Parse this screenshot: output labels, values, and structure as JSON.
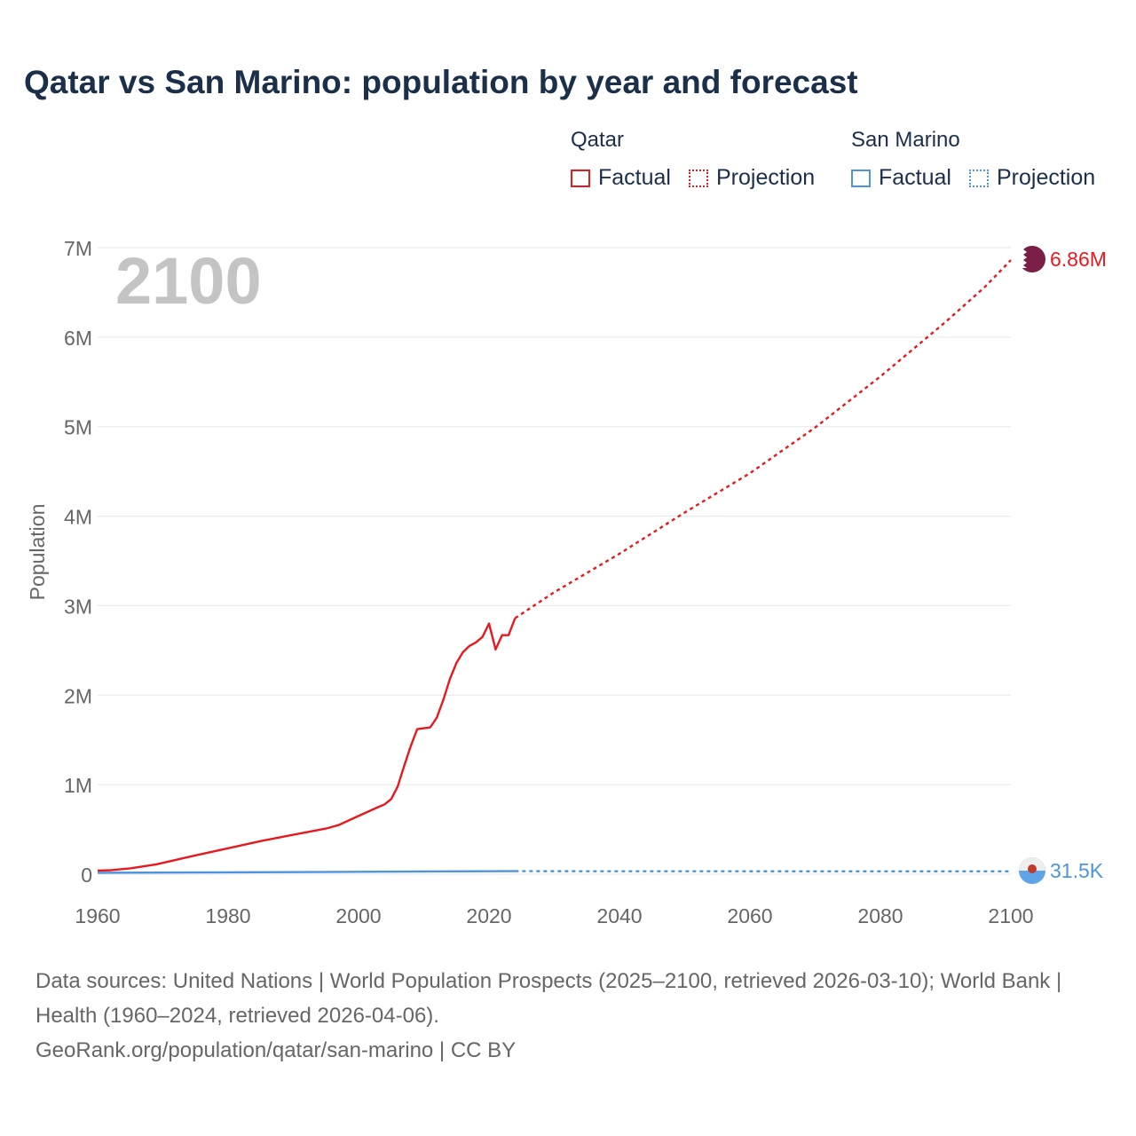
{
  "title": "Qatar vs San Marino: population by year and forecast",
  "legend": {
    "groups": [
      {
        "name": "Qatar",
        "factual_label": "Factual",
        "projection_label": "Projection",
        "color": "#e8191e"
      },
      {
        "name": "San Marino",
        "factual_label": "Factual",
        "projection_label": "Projection",
        "color": "#4d94e0"
      }
    ]
  },
  "year_watermark": "2100",
  "end_labels": {
    "qatar": "6.86M",
    "san_marino": "31.5K"
  },
  "source": {
    "line1": "Data sources: United Nations | World Population Prospects (2025–2100, retrieved 2026-03-10); World Bank | Health (1960–2024, retrieved 2026-04-06).",
    "line2": "GeoRank.org/population/qatar/san-marino | CC BY"
  },
  "chart_data": {
    "type": "line",
    "ylabel": "Population",
    "xlim": [
      1960,
      2100
    ],
    "ylim": [
      0,
      7000000
    ],
    "xticks": [
      1960,
      1980,
      2000,
      2020,
      2040,
      2060,
      2080,
      2100
    ],
    "xtick_labels": [
      "1960",
      "1980",
      "2000",
      "2020",
      "2040",
      "2060",
      "2080",
      "2100"
    ],
    "yticks": [
      0,
      1000000,
      2000000,
      3000000,
      4000000,
      5000000,
      6000000,
      7000000
    ],
    "ytick_labels": [
      "0",
      "1M",
      "2M",
      "3M",
      "4M",
      "5M",
      "6M",
      "7M"
    ],
    "series": [
      {
        "name": "Qatar",
        "kind": "Factual",
        "color": "#e8191e",
        "dashed": false,
        "x": [
          1960,
          1962,
          1965,
          1969,
          1975,
          1980,
          1985,
          1990,
          1995,
          1997,
          2000,
          2003,
          2004,
          2005,
          2006,
          2007,
          2008,
          2009,
          2010,
          2011,
          2012,
          2013,
          2014,
          2015,
          2016,
          2017,
          2018,
          2019,
          2020,
          2021,
          2022,
          2023,
          2024
        ],
        "y": [
          40000,
          45000,
          65000,
          110000,
          210000,
          290000,
          370000,
          440000,
          510000,
          550000,
          650000,
          750000,
          780000,
          840000,
          980000,
          1210000,
          1430000,
          1620000,
          1630000,
          1640000,
          1750000,
          1950000,
          2180000,
          2360000,
          2480000,
          2550000,
          2590000,
          2650000,
          2800000,
          2510000,
          2670000,
          2670000,
          2860000
        ]
      },
      {
        "name": "Qatar",
        "kind": "Projection",
        "color": "#e8191e",
        "dashed": true,
        "x": [
          2024,
          2030,
          2040,
          2050,
          2060,
          2070,
          2080,
          2090,
          2096,
          2100
        ],
        "y": [
          2860000,
          3150000,
          3580000,
          4040000,
          4480000,
          4990000,
          5560000,
          6170000,
          6560000,
          6860000
        ]
      },
      {
        "name": "San Marino",
        "kind": "Factual",
        "color": "#4d94e0",
        "dashed": false,
        "x": [
          1960,
          1980,
          2000,
          2010,
          2024
        ],
        "y": [
          15400,
          21300,
          27000,
          31200,
          33600
        ]
      },
      {
        "name": "San Marino",
        "kind": "Projection",
        "color": "#4d94e0",
        "dashed": true,
        "x": [
          2024,
          2050,
          2075,
          2100
        ],
        "y": [
          33600,
          33000,
          32000,
          31500
        ]
      }
    ]
  }
}
